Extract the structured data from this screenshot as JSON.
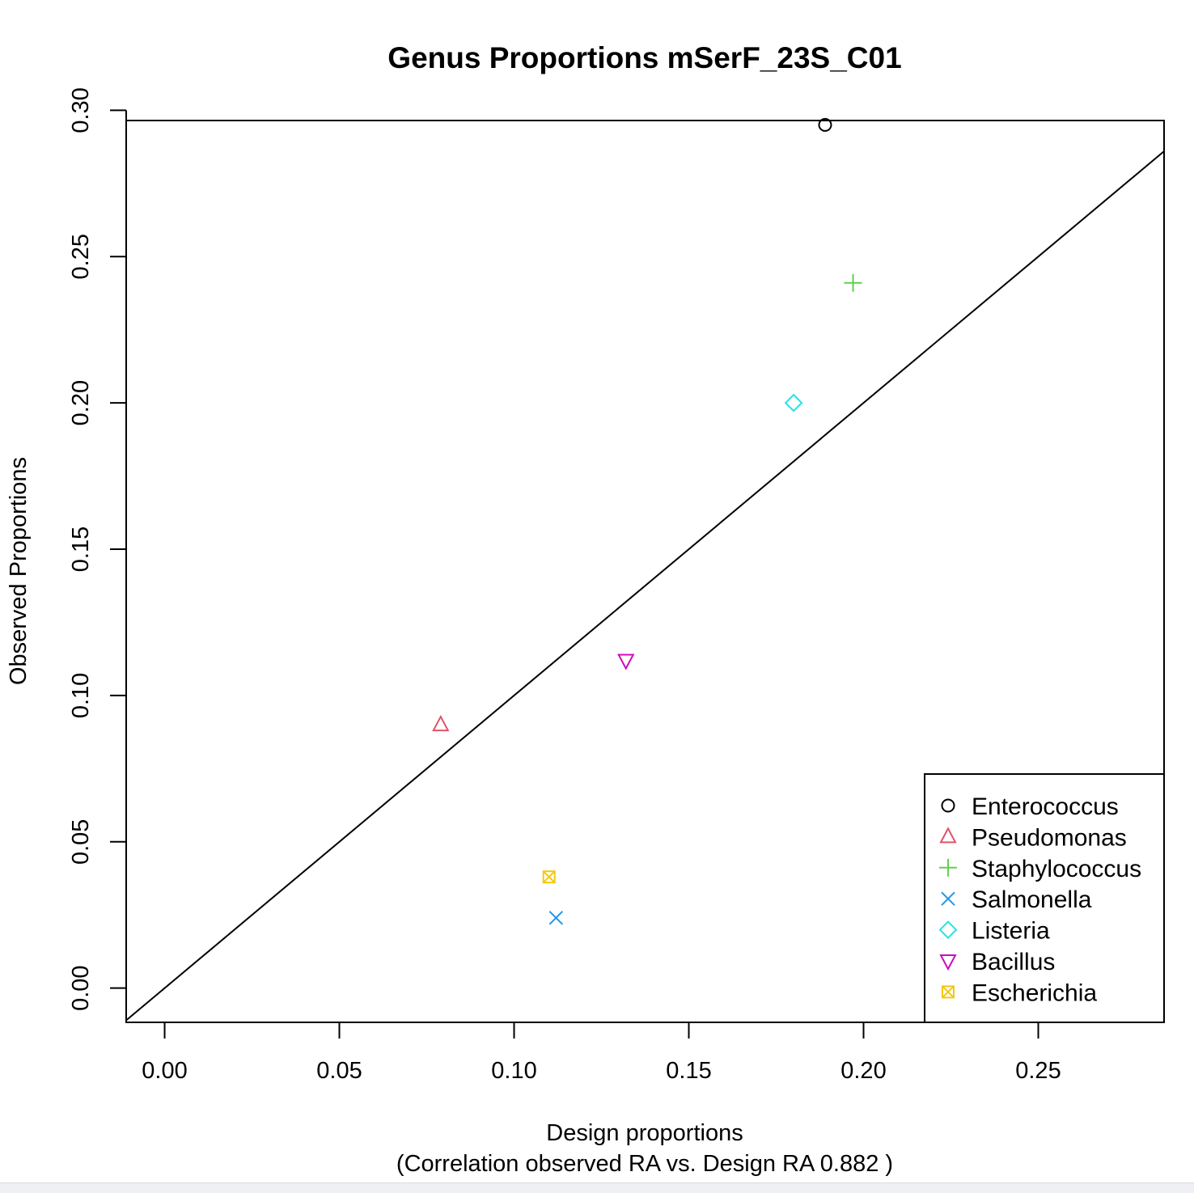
{
  "chart_data": {
    "type": "scatter",
    "title": "Genus Proportions mSerF_23S_C01",
    "xlabel": "Design proportions",
    "xlabel2": "(Correlation observed RA vs. Design RA  0.882 )",
    "ylabel": "Observed Proportions",
    "xlim": [
      -0.011,
      0.286
    ],
    "ylim": [
      -0.0117,
      0.2965
    ],
    "xticks": [
      "0.00",
      "0.05",
      "0.10",
      "0.15",
      "0.20",
      "0.25"
    ],
    "yticks": [
      "0.00",
      "0.05",
      "0.10",
      "0.15",
      "0.20",
      "0.25",
      "0.30"
    ],
    "reference_line": "y = x",
    "legend_position": "bottom-right",
    "series": [
      {
        "name": "Enterococcus",
        "x": 0.189,
        "y": 0.295,
        "marker": "circle",
        "color": "#000000"
      },
      {
        "name": "Pseudomonas",
        "x": 0.079,
        "y": 0.09,
        "marker": "triangle-up",
        "color": "#DF536B"
      },
      {
        "name": "Staphylococcus",
        "x": 0.197,
        "y": 0.241,
        "marker": "plus",
        "color": "#61D04F"
      },
      {
        "name": "Salmonella",
        "x": 0.112,
        "y": 0.024,
        "marker": "cross",
        "color": "#2297E6"
      },
      {
        "name": "Listeria",
        "x": 0.18,
        "y": 0.2,
        "marker": "diamond",
        "color": "#28E2E5"
      },
      {
        "name": "Bacillus",
        "x": 0.132,
        "y": 0.112,
        "marker": "triangle-down",
        "color": "#CD0BBC"
      },
      {
        "name": "Escherichia",
        "x": 0.11,
        "y": 0.038,
        "marker": "square-cross",
        "color": "#F5C710"
      }
    ]
  }
}
